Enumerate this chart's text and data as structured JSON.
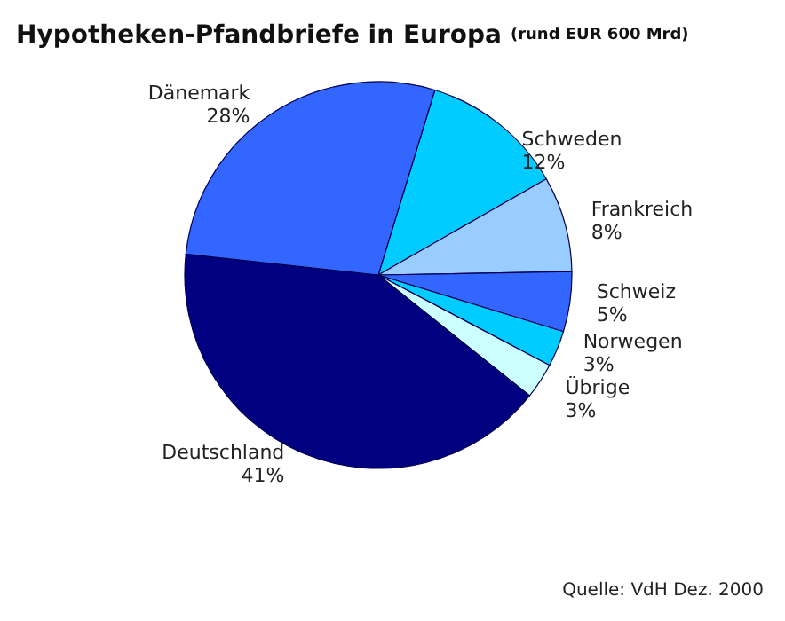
{
  "chart_data": {
    "type": "pie",
    "title": "Hypotheken-Pfandbriefe in Europa",
    "subtitle": "(rund EUR 600 Mrd)",
    "categories": [
      "Schweden",
      "Frankreich",
      "Schweiz",
      "Norwegen",
      "Übrige",
      "Deutschland",
      "Dänemark"
    ],
    "values": [
      12,
      8,
      5,
      3,
      3,
      41,
      28
    ],
    "colors": [
      "#00ccff",
      "#99ccff",
      "#3366ff",
      "#00ccff",
      "#ccffff",
      "#000080",
      "#3366ff"
    ],
    "value_labels": [
      "12%",
      "8%",
      "5%",
      "3%",
      "3%",
      "41%",
      "28%"
    ],
    "legend": false,
    "annotations": [
      "Quelle: VdH Dez. 2000"
    ]
  }
}
